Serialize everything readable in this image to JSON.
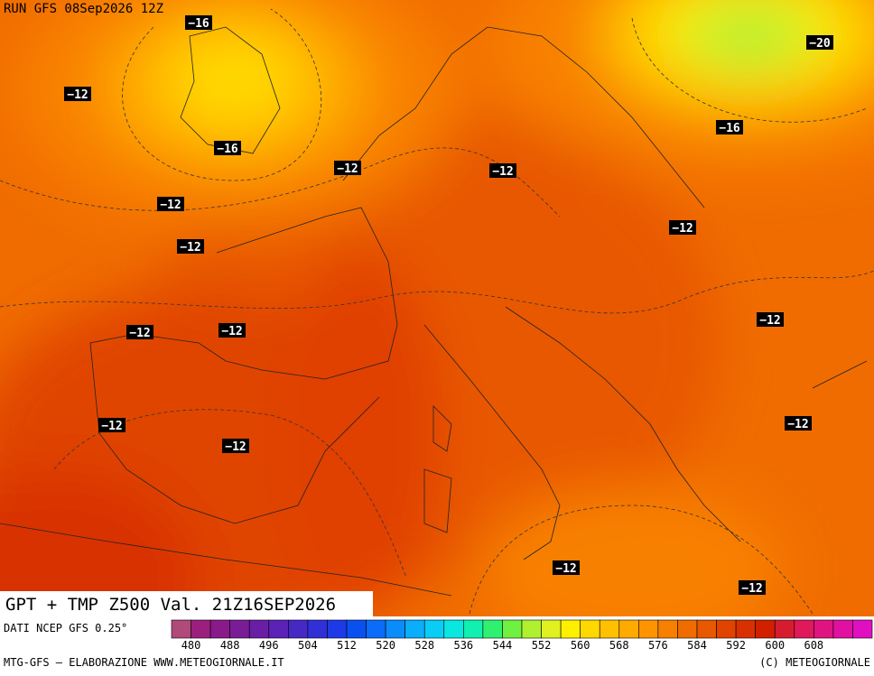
{
  "header": {
    "run": "RUN GFS 08Sep2026 12Z"
  },
  "title": "GPT + TMP Z500 Val. 21Z16SEP2026",
  "source": "DATI NCEP GFS 0.25°",
  "footer": {
    "left": "MTG-GFS — ELABORAZIONE WWW.METEOGIORNALE.IT",
    "right": "(C) METEOGIORNALE"
  },
  "legend": {
    "labels": [
      "480",
      "488",
      "496",
      "504",
      "512",
      "520",
      "528",
      "536",
      "544",
      "552",
      "560",
      "568",
      "576",
      "584",
      "592",
      "600",
      "608"
    ],
    "colors": [
      "#b04a7a",
      "#9c1f7e",
      "#8a1a8a",
      "#7a1c96",
      "#6a1ea6",
      "#5a22b6",
      "#4628c4",
      "#3030d6",
      "#1e3ae6",
      "#0a50f0",
      "#0a6cf8",
      "#0a8cfa",
      "#0aaefa",
      "#0acdf5",
      "#0ae6e0",
      "#10f0b0",
      "#30f070",
      "#70f040",
      "#b0f030",
      "#e0f020",
      "#fff000",
      "#ffd800",
      "#ffc000",
      "#ffaa00",
      "#ff9400",
      "#f88000",
      "#f06c00",
      "#e85800",
      "#e04400",
      "#d83000",
      "#d02000",
      "#d81c30",
      "#e0185c",
      "#e01480",
      "#e010a0",
      "#e010c0"
    ]
  },
  "map": {
    "isotherm_labels": [
      "−16",
      "−20",
      "−12",
      "−16",
      "−16",
      "−12",
      "−12",
      "−12",
      "−12",
      "−12",
      "−12",
      "−12",
      "−12",
      "−12",
      "−12",
      "−12",
      "−12",
      "−12"
    ]
  }
}
